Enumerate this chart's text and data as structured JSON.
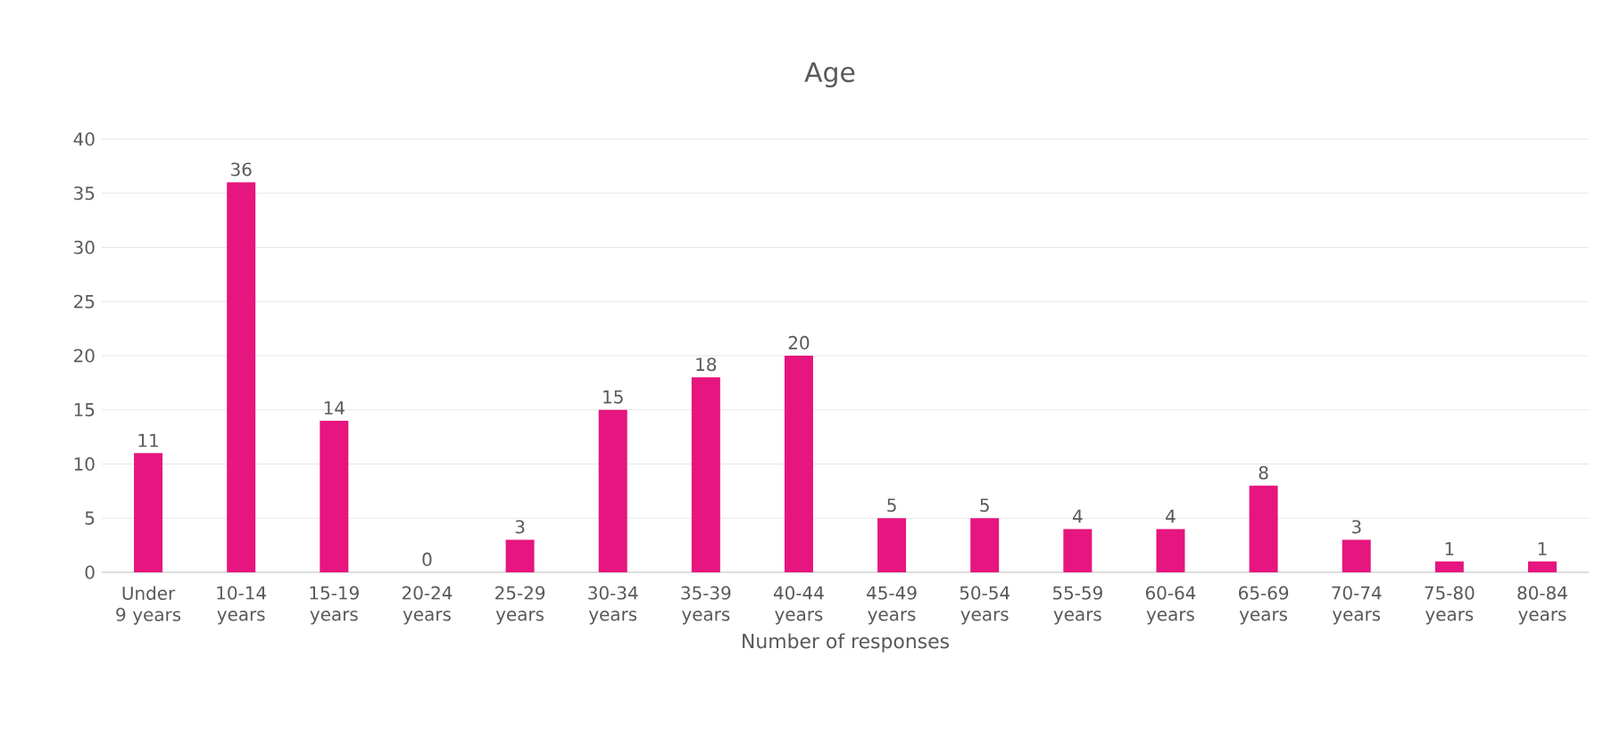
{
  "chart_data": {
    "type": "bar",
    "title": "Age",
    "xlabel": "Number of responses",
    "categories": [
      "Under 9 years",
      "10-14 years",
      "15-19 years",
      "20-24 years",
      "25-29 years",
      "30-34 years",
      "35-39 years",
      "40-44 years",
      "45-49 years",
      "50-54 years",
      "55-59 years",
      "60-64 years",
      "65-69 years",
      "70-74 years",
      "75-80 years",
      "80-84 years"
    ],
    "values": [
      11,
      36,
      14,
      0,
      3,
      15,
      18,
      20,
      5,
      5,
      4,
      4,
      8,
      3,
      1,
      1
    ],
    "color": "#e6157f",
    "ylim": [
      0,
      40
    ],
    "yticks": [
      0,
      5,
      10,
      15,
      20,
      25,
      30,
      35,
      40
    ],
    "grid": "y",
    "data_labels": true
  }
}
